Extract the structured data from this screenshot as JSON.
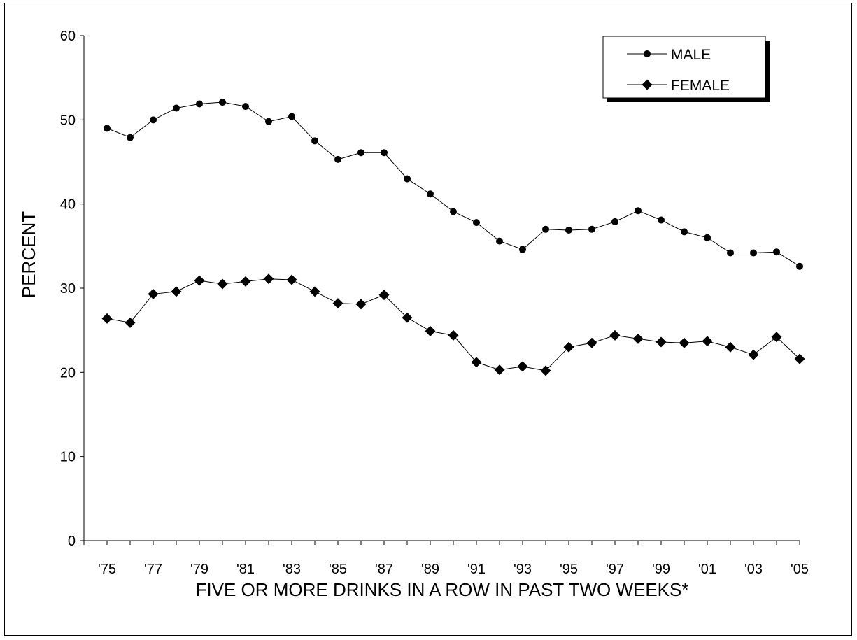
{
  "chart_data": {
    "type": "line",
    "xlabel": "FIVE OR MORE DRINKS IN A ROW IN PAST TWO WEEKS*",
    "ylabel": "PERCENT",
    "ylim": [
      0,
      60
    ],
    "yticks": [
      "0",
      "10",
      "20",
      "30",
      "40",
      "50",
      "60"
    ],
    "xlim": [
      1974,
      2005
    ],
    "x": [
      1975,
      1976,
      1977,
      1978,
      1979,
      1980,
      1981,
      1982,
      1983,
      1984,
      1985,
      1986,
      1987,
      1988,
      1989,
      1990,
      1991,
      1992,
      1993,
      1994,
      1995,
      1996,
      1997,
      1998,
      1999,
      2000,
      2001,
      2002,
      2003,
      2004,
      2005
    ],
    "xtick_labels": [
      "'75",
      "'77",
      "'79",
      "'81",
      "'83",
      "'85",
      "'87",
      "'89",
      "'91",
      "'93",
      "'95",
      "'97",
      "'99",
      "'01",
      "'03",
      "'05"
    ],
    "grid": false,
    "legend_position": "top-right",
    "series": [
      {
        "name": "MALE",
        "marker": "circle",
        "color": "#000000",
        "values": [
          49.0,
          47.9,
          50.0,
          51.4,
          51.9,
          52.1,
          51.6,
          49.8,
          50.4,
          47.5,
          45.3,
          46.1,
          46.1,
          43.0,
          41.2,
          39.1,
          37.8,
          35.6,
          34.6,
          37.0,
          36.9,
          37.0,
          37.9,
          39.2,
          38.1,
          36.7,
          36.0,
          34.2,
          34.2,
          34.3,
          32.6
        ]
      },
      {
        "name": "FEMALE",
        "marker": "diamond",
        "color": "#000000",
        "values": [
          26.4,
          25.9,
          29.3,
          29.6,
          30.9,
          30.5,
          30.8,
          31.1,
          31.0,
          29.6,
          28.2,
          28.1,
          29.2,
          26.5,
          24.9,
          24.4,
          21.2,
          20.3,
          20.7,
          20.2,
          23.0,
          23.5,
          24.4,
          24.0,
          23.6,
          23.5,
          23.7,
          23.0,
          22.1,
          24.2,
          21.6
        ]
      }
    ]
  }
}
